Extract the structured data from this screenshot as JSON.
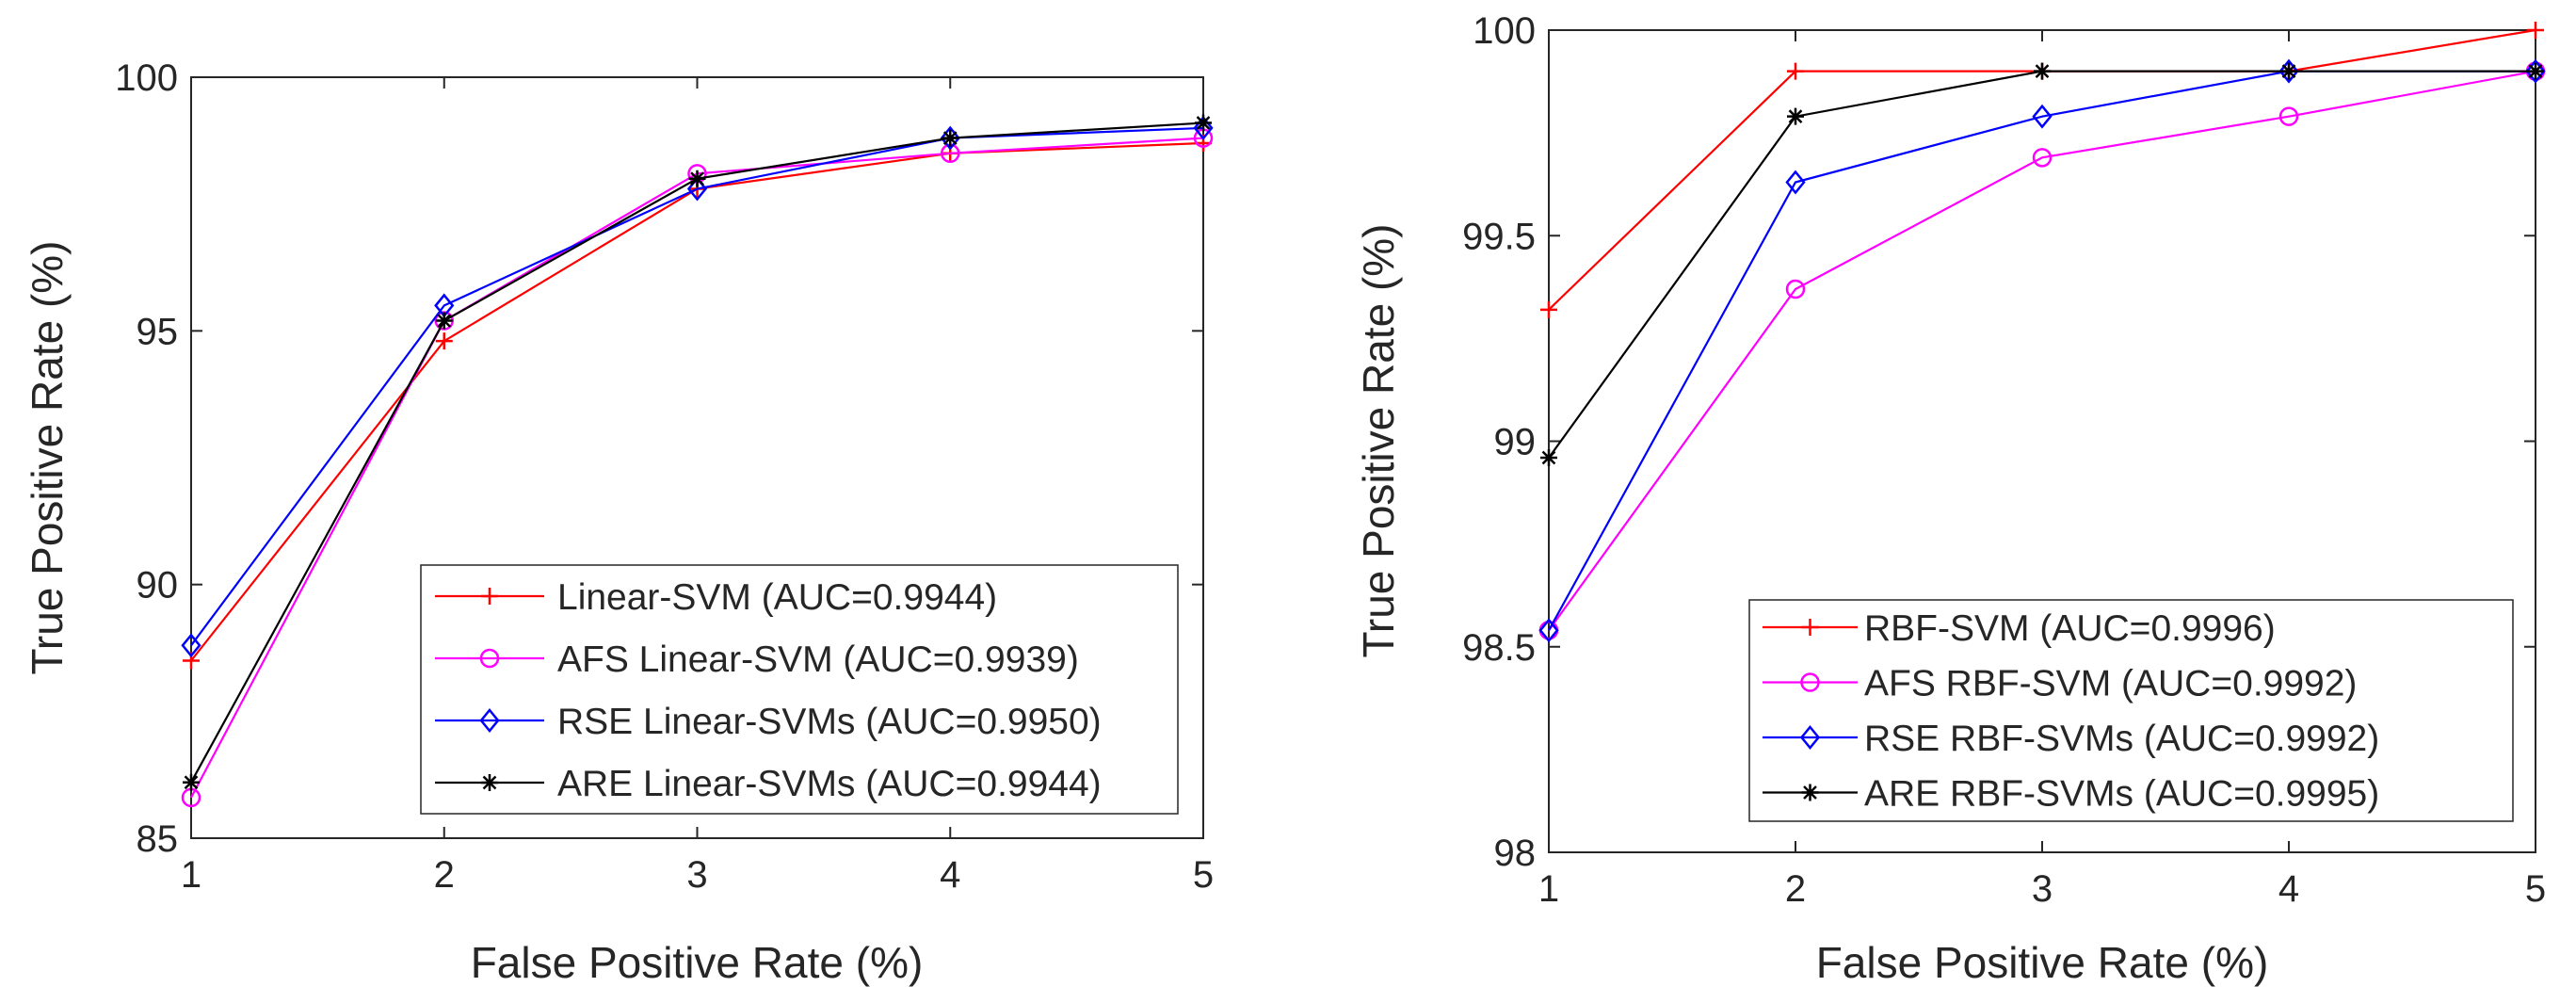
{
  "chart_data": [
    {
      "type": "line",
      "xlabel": "False Positive Rate (%)",
      "ylabel": "True Positive Rate (%)",
      "xlim": [
        1,
        5
      ],
      "ylim": [
        85,
        100
      ],
      "x_ticks": [
        1,
        2,
        3,
        4,
        5
      ],
      "y_ticks": [
        85,
        90,
        95,
        100
      ],
      "grid": false,
      "legend_position": "bottom-right",
      "x": [
        1,
        2,
        3,
        4,
        5
      ],
      "series": [
        {
          "name": "Linear-SVM (AUC=0.9944)",
          "color": "#ff0000",
          "marker": "plus",
          "values": [
            88.5,
            94.8,
            97.8,
            98.5,
            98.7
          ]
        },
        {
          "name": "AFS Linear-SVM (AUC=0.9939)",
          "color": "#ff00ff",
          "marker": "circle",
          "values": [
            85.8,
            95.2,
            98.1,
            98.5,
            98.8
          ]
        },
        {
          "name": "RSE Linear-SVMs (AUC=0.9950)",
          "color": "#0000ff",
          "marker": "diamond",
          "values": [
            88.8,
            95.5,
            97.8,
            98.8,
            99.0
          ]
        },
        {
          "name": "ARE Linear-SVMs (AUC=0.9944)",
          "color": "#000000",
          "marker": "asterisk",
          "values": [
            86.1,
            95.2,
            98.0,
            98.8,
            99.1
          ]
        }
      ]
    },
    {
      "type": "line",
      "xlabel": "False Positive Rate (%)",
      "ylabel": "True Positive Rate (%)",
      "xlim": [
        1,
        5
      ],
      "ylim": [
        98,
        100
      ],
      "x_ticks": [
        1,
        2,
        3,
        4,
        5
      ],
      "y_ticks": [
        98,
        98.5,
        99,
        99.5,
        100
      ],
      "grid": false,
      "legend_position": "bottom-right",
      "x": [
        1,
        2,
        3,
        4,
        5
      ],
      "series": [
        {
          "name": "RBF-SVM (AUC=0.9996)",
          "color": "#ff0000",
          "marker": "plus",
          "values": [
            99.32,
            99.9,
            99.9,
            99.9,
            100.0
          ]
        },
        {
          "name": "AFS RBF-SVM (AUC=0.9992)",
          "color": "#ff00ff",
          "marker": "circle",
          "values": [
            98.54,
            99.37,
            99.69,
            99.79,
            99.9
          ]
        },
        {
          "name": "RSE RBF-SVMs (AUC=0.9992)",
          "color": "#0000ff",
          "marker": "diamond",
          "values": [
            98.54,
            99.63,
            99.79,
            99.9,
            99.9
          ]
        },
        {
          "name": "ARE RBF-SVMs (AUC=0.9995)",
          "color": "#000000",
          "marker": "asterisk",
          "values": [
            98.96,
            99.79,
            99.9,
            99.9,
            99.9
          ]
        }
      ]
    }
  ]
}
